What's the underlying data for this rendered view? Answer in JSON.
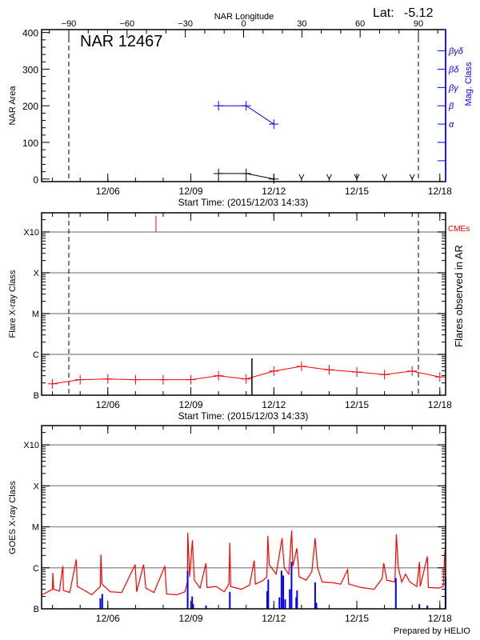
{
  "header": {
    "lat_label": "Lat:",
    "lat_value": "-5.12",
    "top_axis_label": "NAR Longitude",
    "region_title": "NAR 12467"
  },
  "footer": {
    "credit": "Prepared by HELIO"
  },
  "colors": {
    "axis": "#000000",
    "grid": "#999999",
    "red": "#ff0000",
    "blue": "#0000ff"
  },
  "chart_data": [
    {
      "type": "line",
      "xlabel": "Start Time: (2015/12/03 14:33)",
      "ylabel": "NAR Area",
      "y2label": "Mag. Class",
      "xlim": [
        "2015-12-03T14:33",
        "2015-12-18T05:00"
      ],
      "ylim": [
        -7,
        408
      ],
      "yticks": [
        0,
        100,
        200,
        300,
        400
      ],
      "xticks": [
        {
          "date": "2015-12-06",
          "label": "12/06"
        },
        {
          "date": "2015-12-09",
          "label": "12/09"
        },
        {
          "date": "2015-12-12",
          "label": "12/12"
        },
        {
          "date": "2015-12-15",
          "label": "12/15"
        },
        {
          "date": "2015-12-18",
          "label": "12/18"
        }
      ],
      "top_axis": {
        "label": "NAR Longitude",
        "lim": [
          -104,
          104
        ],
        "ticks": [
          -90,
          -60,
          -30,
          0,
          30,
          60,
          90
        ]
      },
      "limb_lines_longitude": [
        -90,
        90
      ],
      "mag_class_ticks": [
        {
          "value": 50,
          "label": ""
        },
        {
          "value": 100,
          "label": ""
        },
        {
          "value": 150,
          "label": "α"
        },
        {
          "value": 200,
          "label": "β"
        },
        {
          "value": 250,
          "label": "βγ"
        },
        {
          "value": 300,
          "label": "βδ"
        },
        {
          "value": 350,
          "label": "βγδ"
        }
      ],
      "series": [
        {
          "key": "area",
          "color": "#000000",
          "points": [
            [
              "2015-12-10T00:00",
              15
            ],
            [
              "2015-12-11T00:00",
              15
            ],
            [
              "2015-12-12T00:00",
              0
            ]
          ]
        },
        {
          "key": "mag_class",
          "color": "#0000ff",
          "points": [
            [
              "2015-12-10T00:00",
              200
            ],
            [
              "2015-12-11T00:00",
              200
            ],
            [
              "2015-12-12T00:00",
              150
            ]
          ]
        }
      ],
      "no_data_markers": [
        "2015-12-13T00:00",
        "2015-12-14T00:00",
        "2015-12-15T00:00",
        "2015-12-16T00:00",
        "2015-12-17T00:00"
      ]
    },
    {
      "type": "line",
      "xlabel": "Start Time: (2015/12/03 14:33)",
      "ylabel": "Flare X-ray Class",
      "y2label": "Flares observed in AR",
      "cme_label": "CMEs",
      "xlim": [
        "2015-12-03T14:33",
        "2015-12-18T05:00"
      ],
      "yscale": "log",
      "ylim": [
        1e-07,
        0.00295
      ],
      "grid": true,
      "yticks": [
        {
          "value": 1e-07,
          "label": "B"
        },
        {
          "value": 1e-06,
          "label": "C"
        },
        {
          "value": 1e-05,
          "label": "M"
        },
        {
          "value": 0.0001,
          "label": "X"
        },
        {
          "value": 0.001,
          "label": "X10"
        }
      ],
      "xticks": [
        {
          "date": "2015-12-06",
          "label": "12/06"
        },
        {
          "date": "2015-12-09",
          "label": "12/09"
        },
        {
          "date": "2015-12-12",
          "label": "12/12"
        },
        {
          "date": "2015-12-15",
          "label": "12/15"
        },
        {
          "date": "2015-12-18",
          "label": "12/18"
        }
      ],
      "limb_lines_longitude": [
        -90,
        90
      ],
      "series": [
        {
          "key": "daily_level",
          "color": "#ff0000",
          "points": [
            [
              "2015-12-04T00:00",
              1.9e-07
            ],
            [
              "2015-12-05T00:00",
              2.4e-07
            ],
            [
              "2015-12-06T00:00",
              2.5e-07
            ],
            [
              "2015-12-07T00:00",
              2.4e-07
            ],
            [
              "2015-12-08T00:00",
              2.4e-07
            ],
            [
              "2015-12-09T00:00",
              2.4e-07
            ],
            [
              "2015-12-10T00:00",
              3e-07
            ],
            [
              "2015-12-11T00:00",
              2.5e-07
            ],
            [
              "2015-12-12T00:00",
              3.9e-07
            ],
            [
              "2015-12-13T00:00",
              5.1e-07
            ],
            [
              "2015-12-14T00:00",
              4.2e-07
            ],
            [
              "2015-12-15T00:00",
              3.7e-07
            ],
            [
              "2015-12-16T00:00",
              3.2e-07
            ],
            [
              "2015-12-17T00:00",
              3.9e-07
            ],
            [
              "2015-12-18T00:00",
              2.8e-07
            ]
          ]
        }
      ],
      "flares": [
        {
          "date": "2015-12-11T05:00",
          "flux": 8e-07
        }
      ],
      "cmes": [
        "2015-12-07T17:45"
      ]
    },
    {
      "type": "line",
      "ylabel": "GOES X-ray Class",
      "xlim": [
        "2015-12-03T14:33",
        "2015-12-18T05:00"
      ],
      "yscale": "log",
      "ylim": [
        1e-07,
        0.00295
      ],
      "grid": true,
      "yticks": [
        {
          "value": 1e-07,
          "label": "B"
        },
        {
          "value": 1e-06,
          "label": "C"
        },
        {
          "value": 1e-05,
          "label": "M"
        },
        {
          "value": 0.0001,
          "label": "X"
        },
        {
          "value": 0.001,
          "label": "X10"
        }
      ],
      "xticks": [
        {
          "date": "2015-12-06",
          "label": "12/06"
        },
        {
          "date": "2015-12-09",
          "label": "12/09"
        },
        {
          "date": "2015-12-12",
          "label": "12/12"
        },
        {
          "date": "2015-12-15",
          "label": "12/15"
        },
        {
          "date": "2015-12-18",
          "label": "12/18"
        }
      ],
      "series": [
        {
          "key": "goes_long",
          "color": "#ff0000",
          "points": [
            [
              "2015-12-03T15:00",
              2.2e-07
            ],
            [
              "2015-12-03T20:00",
              2.6e-07
            ],
            [
              "2015-12-04T00:00",
              3e-07
            ],
            [
              "2015-12-04T00:15",
              7.5e-07
            ],
            [
              "2015-12-04T01:00",
              3e-07
            ],
            [
              "2015-12-04T06:00",
              2.7e-07
            ],
            [
              "2015-12-04T09:00",
              1.1e-06
            ],
            [
              "2015-12-04T09:30",
              2.8e-07
            ],
            [
              "2015-12-04T15:00",
              2.5e-07
            ],
            [
              "2015-12-04T20:40",
              1.6e-06
            ],
            [
              "2015-12-04T21:30",
              3.5e-07
            ],
            [
              "2015-12-05T04:00",
              2.8e-07
            ],
            [
              "2015-12-05T10:00",
              2.2e-07
            ],
            [
              "2015-12-05T17:30",
              3.5e-07
            ],
            [
              "2015-12-05T18:00",
              2.1e-06
            ],
            [
              "2015-12-05T19:00",
              4e-07
            ],
            [
              "2015-12-06T02:00",
              2.6e-07
            ],
            [
              "2015-12-06T12:00",
              2.5e-07
            ],
            [
              "2015-12-06T23:45",
              1.2e-06
            ],
            [
              "2015-12-07T01:00",
              2.6e-07
            ],
            [
              "2015-12-07T07:00",
              1.2e-06
            ],
            [
              "2015-12-07T09:00",
              3.2e-07
            ],
            [
              "2015-12-07T16:00",
              2.5e-07
            ],
            [
              "2015-12-08T01:30",
              1.1e-06
            ],
            [
              "2015-12-08T03:00",
              2.3e-07
            ],
            [
              "2015-12-08T12:00",
              2.2e-07
            ],
            [
              "2015-12-08T19:00",
              2.6e-07
            ],
            [
              "2015-12-08T21:00",
              4.5e-07
            ],
            [
              "2015-12-08T21:20",
              7.2e-06
            ],
            [
              "2015-12-08T23:00",
              6e-07
            ],
            [
              "2015-12-09T01:20",
              4.7e-06
            ],
            [
              "2015-12-09T03:00",
              5e-07
            ],
            [
              "2015-12-09T08:00",
              3.2e-07
            ],
            [
              "2015-12-09T13:10",
              1.3e-06
            ],
            [
              "2015-12-09T14:00",
              3.3e-07
            ],
            [
              "2015-12-09T22:00",
              3.5e-07
            ],
            [
              "2015-12-10T05:00",
              2.6e-07
            ],
            [
              "2015-12-10T09:00",
              4e-07
            ],
            [
              "2015-12-10T09:50",
              4.1e-06
            ],
            [
              "2015-12-10T10:30",
              3.5e-07
            ],
            [
              "2015-12-10T20:00",
              3e-07
            ],
            [
              "2015-12-11T03:00",
              3.8e-07
            ],
            [
              "2015-12-11T07:00",
              1.5e-06
            ],
            [
              "2015-12-11T08:00",
              4e-07
            ],
            [
              "2015-12-11T14:00",
              4.8e-07
            ],
            [
              "2015-12-11T18:00",
              6e-07
            ],
            [
              "2015-12-11T18:50",
              6e-06
            ],
            [
              "2015-12-11T20:00",
              1.2e-06
            ],
            [
              "2015-12-12T02:00",
              7e-07
            ],
            [
              "2015-12-12T07:10",
              5.3e-06
            ],
            [
              "2015-12-12T09:00",
              1e-06
            ],
            [
              "2015-12-12T13:00",
              7e-07
            ],
            [
              "2015-12-12T15:30",
              8.1e-06
            ],
            [
              "2015-12-12T16:30",
              1.1e-06
            ],
            [
              "2015-12-12T20:00",
              3e-06
            ],
            [
              "2015-12-12T22:00",
              6e-07
            ],
            [
              "2015-12-13T04:00",
              5e-07
            ],
            [
              "2015-12-13T09:00",
              8e-07
            ],
            [
              "2015-12-13T11:50",
              5.3e-06
            ],
            [
              "2015-12-13T14:00",
              1e-06
            ],
            [
              "2015-12-13T18:00",
              4.5e-07
            ],
            [
              "2015-12-14T04:00",
              4.3e-07
            ],
            [
              "2015-12-14T10:00",
              4e-07
            ],
            [
              "2015-12-14T16:00",
              9e-07
            ],
            [
              "2015-12-14T17:00",
              4e-07
            ],
            [
              "2015-12-15T04:00",
              3.3e-07
            ],
            [
              "2015-12-15T15:00",
              3e-07
            ],
            [
              "2015-12-15T22:00",
              5.5e-07
            ],
            [
              "2015-12-15T23:20",
              1.3e-06
            ],
            [
              "2015-12-16T02:00",
              5e-07
            ],
            [
              "2015-12-16T09:00",
              4.5e-07
            ],
            [
              "2015-12-16T10:20",
              6.6e-06
            ],
            [
              "2015-12-16T12:00",
              1e-06
            ],
            [
              "2015-12-16T15:00",
              4.5e-07
            ],
            [
              "2015-12-16T18:20",
              7e-07
            ],
            [
              "2015-12-16T22:00",
              4.5e-07
            ],
            [
              "2015-12-17T04:00",
              3.5e-07
            ],
            [
              "2015-12-17T06:20",
              1.4e-06
            ],
            [
              "2015-12-17T07:00",
              3.5e-07
            ],
            [
              "2015-12-17T13:10",
              1.9e-06
            ],
            [
              "2015-12-17T14:00",
              3.3e-07
            ],
            [
              "2015-12-17T23:00",
              3.2e-07
            ],
            [
              "2015-12-18T03:00",
              3.5e-07
            ],
            [
              "2015-12-18T04:00",
              1.6e-06
            ],
            [
              "2015-12-18T05:00",
              4.8e-06
            ]
          ]
        },
        {
          "key": "goes_short",
          "color": "#0000ff",
          "bars": [
            [
              "2015-12-05T17:30",
              1.8e-07
            ],
            [
              "2015-12-05T19:10",
              2.3e-07
            ],
            [
              "2015-12-08T21:15",
              8.5e-07
            ],
            [
              "2015-12-09T01:10",
              2e-07
            ],
            [
              "2015-12-09T02:00",
              1.3e-07
            ],
            [
              "2015-12-09T13:10",
              1.2e-07
            ],
            [
              "2015-12-10T09:50",
              2.6e-07
            ],
            [
              "2015-12-11T18:15",
              2.7e-07
            ],
            [
              "2015-12-11T19:10",
              5.2e-07
            ],
            [
              "2015-12-12T00:00",
              1.06e-07
            ],
            [
              "2015-12-12T04:50",
              1.9e-07
            ],
            [
              "2015-12-12T06:40",
              8.5e-07
            ],
            [
              "2015-12-12T08:10",
              6.5e-07
            ],
            [
              "2015-12-12T09:50",
              1.7e-07
            ],
            [
              "2015-12-12T13:50",
              3e-07
            ],
            [
              "2015-12-12T15:20",
              1.4e-06
            ],
            [
              "2015-12-12T19:25",
              1.9e-07
            ],
            [
              "2015-12-12T20:10",
              2.8e-07
            ],
            [
              "2015-12-13T11:50",
              4.4e-07
            ],
            [
              "2015-12-13T12:55",
              1.4e-07
            ],
            [
              "2015-12-16T09:50",
              5.6e-07
            ],
            [
              "2015-12-17T06:15",
              1.3e-07
            ],
            [
              "2015-12-17T13:10",
              1.2e-07
            ],
            [
              "2015-12-18T04:55",
              6e-07
            ]
          ]
        }
      ]
    }
  ]
}
